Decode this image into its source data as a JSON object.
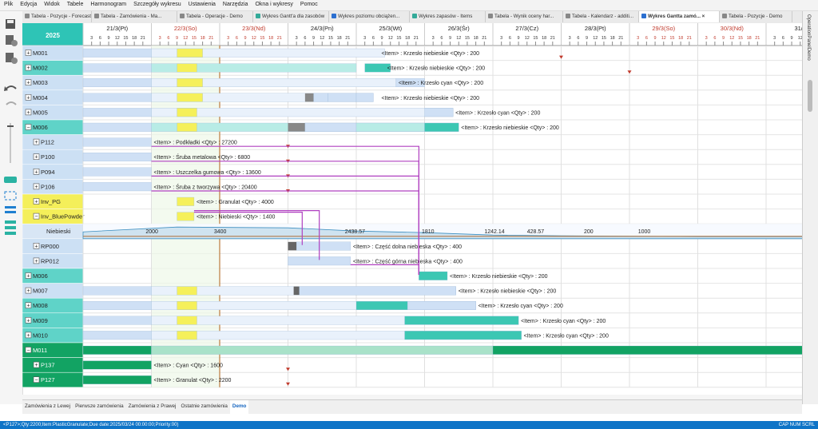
{
  "menu": [
    "Plik",
    "Edycja",
    "Widok",
    "Tabele",
    "Harmonogram",
    "Szczegóły wykresu",
    "Ustawienia",
    "Narzędzia",
    "Okna i wykresy",
    "Pomoc"
  ],
  "tabs": [
    {
      "label": "Tabela - Pozycje - Forecast",
      "active": false
    },
    {
      "label": "Tabela - Zamówienia - Ma...",
      "active": false
    },
    {
      "label": "Tabela - Operacje - Demo",
      "active": false
    },
    {
      "label": "Wykres Gantt'a dla zasobów",
      "active": false
    },
    {
      "label": "Wykres poziomu obciążen...",
      "active": false
    },
    {
      "label": "Wykres zapasów - Items",
      "active": false
    },
    {
      "label": "Tabela - Wynik oceny har...",
      "active": false
    },
    {
      "label": "Tabela - Kalendarz - additi...",
      "active": false
    },
    {
      "label": "Wykres Gantta zamó...",
      "active": true
    },
    {
      "label": "Tabela - Pozycje - Demo",
      "active": false
    }
  ],
  "tab_close_glyph": "×",
  "year": "2025",
  "days": [
    {
      "label": "21/3(Pt)",
      "weekend": false
    },
    {
      "label": "22/3(So)",
      "weekend": true
    },
    {
      "label": "23/3(Nd)",
      "weekend": true
    },
    {
      "label": "24/3(Pn)",
      "weekend": false
    },
    {
      "label": "25/3(Wt)",
      "weekend": false
    },
    {
      "label": "26/3(Śr)",
      "weekend": false
    },
    {
      "label": "27/3(Cz)",
      "weekend": false
    },
    {
      "label": "28/3(Pt)",
      "weekend": false
    },
    {
      "label": "29/3(So)",
      "weekend": true
    },
    {
      "label": "30/3(Nd)",
      "weekend": true
    },
    {
      "label": "31/3",
      "weekend": false
    }
  ],
  "hours": [
    "3",
    "6",
    "9",
    "12",
    "15",
    "18",
    "21"
  ],
  "rows": [
    {
      "label": "M001",
      "expander": "+",
      "bg": "#cce0f4",
      "text": "<Item> : Krzesło niebieskie   <Qty> : 200"
    },
    {
      "label": "M002",
      "expander": "+",
      "bg": "#5fd3c8",
      "text": "<Item> : Krzesło niebieskie   <Qty> : 200"
    },
    {
      "label": "M003",
      "expander": "+",
      "bg": "#cce0f4",
      "text": "<Item> : Krzesło cyan   <Qty> : 200"
    },
    {
      "label": "M004",
      "expander": "+",
      "bg": "#cce0f4",
      "text": "<Item> : Krzesło niebieskie   <Qty> : 200"
    },
    {
      "label": "M005",
      "expander": "+",
      "bg": "#cce0f4",
      "text": "<Item> : Krzesło cyan   <Qty> : 200"
    },
    {
      "label": "M006",
      "expander": "−",
      "bg": "#5fd3c8",
      "text": "<Item> : Krzesło niebieskie   <Qty> : 200"
    },
    {
      "label": "P112",
      "expander": "+",
      "bg": "#cce0f4",
      "text": "<Item> : Podkładki   <Qty> : 27200"
    },
    {
      "label": "P100",
      "expander": "+",
      "bg": "#cce0f4",
      "text": "<Item> : Śruba metalowa   <Qty> : 6800"
    },
    {
      "label": "P094",
      "expander": "+",
      "bg": "#cce0f4",
      "text": "<Item> : Uszczelka gumowa   <Qty> : 13600"
    },
    {
      "label": "P106",
      "expander": "+",
      "bg": "#cce0f4",
      "text": "<Item> : Śruba z tworzywa   <Qty> : 20400"
    },
    {
      "label": "Inv_PG",
      "expander": "+",
      "bg": "#f4ef5a",
      "text": "<Item> : Granulat   <Qty> : 4000"
    },
    {
      "label": "Inv_BluePowder",
      "expander": "−",
      "bg": "#f4ef5a",
      "text": "<Item> : Niebieski   <Qty> : 1400"
    },
    {
      "label": "Niebieski",
      "expander": "",
      "bg": "#d8e6f5",
      "text": ""
    },
    {
      "label": "RP000",
      "expander": "+",
      "bg": "#cce0f4",
      "text": "<Item> : Część dolna niebieska   <Qty> : 400"
    },
    {
      "label": "RP012",
      "expander": "+",
      "bg": "#cce0f4",
      "text": "<Item> : Część górna niebieska   <Qty> : 400"
    },
    {
      "label": "M006",
      "expander": "+",
      "bg": "#5fd3c8",
      "text": "<Item> : Krzesło niebieskie   <Qty> : 200"
    },
    {
      "label": "M007",
      "expander": "+",
      "bg": "#cce0f4",
      "text": "<Item> : Krzesło niebieskie   <Qty> : 200"
    },
    {
      "label": "M008",
      "expander": "+",
      "bg": "#5fd3c8",
      "text": "<Item> : Krzesło cyan   <Qty> : 200"
    },
    {
      "label": "M009",
      "expander": "+",
      "bg": "#5fd3c8",
      "text": "<Item> : Krzesło cyan   <Qty> : 200"
    },
    {
      "label": "M010",
      "expander": "+",
      "bg": "#5fd3c8",
      "text": "<Item> : Krzesło cyan   <Qty> : 200"
    },
    {
      "label": "M011",
      "expander": "−",
      "bg": "#12a363",
      "text": ""
    },
    {
      "label": "P137",
      "expander": "+",
      "bg": "#12a363",
      "text": "<Item> : Cyan   <Qty> : 1600"
    },
    {
      "label": "P127",
      "expander": "−",
      "bg": "#12a363",
      "text": "<Item> : Granulat   <Qty> : 2200"
    }
  ],
  "inventory_labels": [
    "2000",
    "3400",
    "2438.57",
    "1810",
    "1242.14",
    "428.57",
    "200",
    "1000"
  ],
  "bottom_tabs": [
    {
      "label": "Zamówienia z Lewej",
      "active": false
    },
    {
      "label": "Pierwsze zamówienia",
      "active": false
    },
    {
      "label": "Zamówienia z Prawej",
      "active": false
    },
    {
      "label": "Ostatnie zamówienia",
      "active": false
    },
    {
      "label": "Demo",
      "active": true
    }
  ],
  "status": {
    "left": "<P127>;Qty:2200;Item:PlasticGranulate;Due date:2025/03/24 00:00:00;Priority:00)",
    "right": "CAP  NUM  SCRL"
  },
  "right_panel_label": "OperationPanelDemo",
  "colors": {
    "accent": "#0e74c7",
    "weekend": "#c0392b",
    "link": "#b040c0",
    "now": "#c0844a",
    "teal": "#5fd3c8",
    "green": "#12a363",
    "yellow": "#f4ef5a"
  }
}
